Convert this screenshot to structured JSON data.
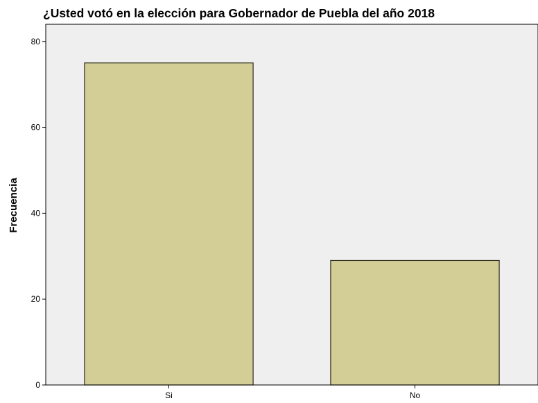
{
  "chart_data": {
    "type": "bar",
    "title": "¿Usted votó en la elección para Gobernador de Puebla del año 2018",
    "xlabel": "",
    "ylabel": "Frecuencia",
    "categories": [
      "Si",
      "No"
    ],
    "values": [
      75,
      29
    ],
    "ylim": [
      0,
      84
    ],
    "yticks": [
      0,
      20,
      40,
      60,
      80
    ],
    "grid": false,
    "legend": "none",
    "colors": {
      "bar_fill": "#d3cd96",
      "bar_stroke": "#2b2b1a",
      "plot_background": "#efefef",
      "axis": "#000000"
    }
  }
}
